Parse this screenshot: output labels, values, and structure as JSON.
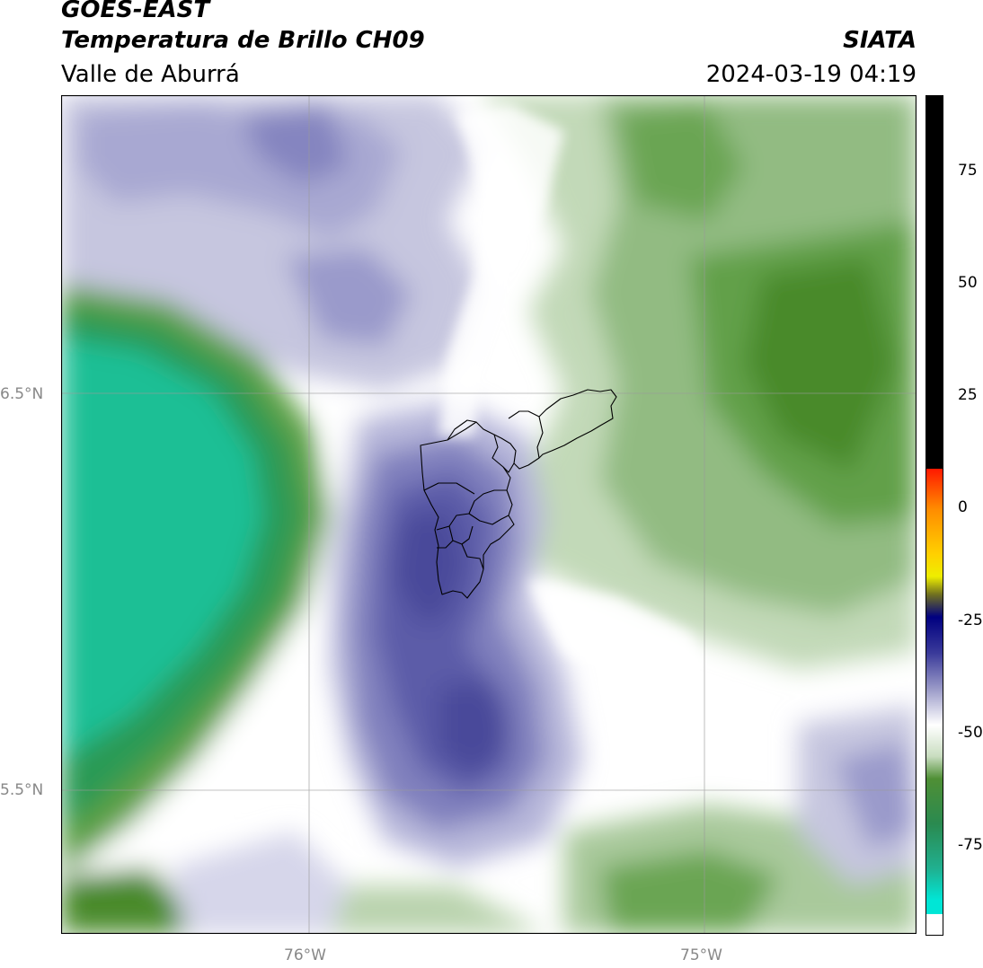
{
  "header": {
    "satellite": "GOES-EAST",
    "product": "Temperatura de Brillo CH09",
    "region": "Valle de Aburrá",
    "agency": "SIATA",
    "datetime": "2024-03-19 04:19"
  },
  "map": {
    "lat_labels": [
      "6.5°N",
      "5.5°N"
    ],
    "lon_labels": [
      "76°W",
      "75°W"
    ],
    "palette": {
      "teal": "#1fbf95",
      "dark_green": "#4a8a2a",
      "light_green": "#c9ddc0",
      "white": "#ffffff",
      "lavender": "#c6c6df",
      "purple": "#8080bd",
      "deep_purple": "#4a4a9a"
    }
  },
  "colorbar": {
    "ticks": [
      "75",
      "50",
      "25",
      "0",
      "-25",
      "-50",
      "-75"
    ],
    "tick_values": [
      75,
      50,
      25,
      0,
      -25,
      -50,
      -75
    ],
    "range": [
      -95,
      92
    ],
    "stops": [
      {
        "v": 92,
        "c": "#000000"
      },
      {
        "v": 9,
        "c": "#000000"
      },
      {
        "v": 8.9,
        "c": "#ff1a00"
      },
      {
        "v": 0,
        "c": "#ff8c00"
      },
      {
        "v": -10,
        "c": "#ffd000"
      },
      {
        "v": -15,
        "c": "#eeee00"
      },
      {
        "v": -19,
        "c": "#707020"
      },
      {
        "v": -24,
        "c": "#000080"
      },
      {
        "v": -32,
        "c": "#3a3a9a"
      },
      {
        "v": -40,
        "c": "#9a9ac8"
      },
      {
        "v": -48,
        "c": "#ffffff"
      },
      {
        "v": -55,
        "c": "#c9ddc0"
      },
      {
        "v": -60,
        "c": "#4f8f35"
      },
      {
        "v": -70,
        "c": "#2a8a50"
      },
      {
        "v": -80,
        "c": "#20b090"
      },
      {
        "v": -87,
        "c": "#00e6d6"
      },
      {
        "v": -90,
        "c": "#00e6d6"
      },
      {
        "v": -90.1,
        "c": "#ffffff"
      },
      {
        "v": -95,
        "c": "#ffffff"
      }
    ]
  }
}
